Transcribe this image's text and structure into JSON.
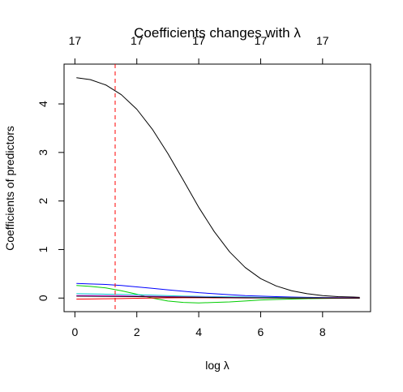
{
  "chart_data": {
    "type": "line",
    "title": "Coefficients changes with λ",
    "xlabel": "log λ",
    "ylabel": "Coefficients of predictors",
    "xlim": [
      -0.35,
      9.55
    ],
    "ylim": [
      -0.28,
      4.82
    ],
    "x_ticks": [
      {
        "value": 0,
        "label": "0"
      },
      {
        "value": 2,
        "label": "2"
      },
      {
        "value": 4,
        "label": "4"
      },
      {
        "value": 6,
        "label": "6"
      },
      {
        "value": 8,
        "label": "8"
      }
    ],
    "y_ticks": [
      {
        "value": 0,
        "label": "0"
      },
      {
        "value": 1,
        "label": "1"
      },
      {
        "value": 2,
        "label": "2"
      },
      {
        "value": 3,
        "label": "3"
      },
      {
        "value": 4,
        "label": "4"
      }
    ],
    "top_ticks": [
      {
        "value": 0,
        "label": "17"
      },
      {
        "value": 2,
        "label": "17"
      },
      {
        "value": 4,
        "label": "17"
      },
      {
        "value": 6,
        "label": "17"
      },
      {
        "value": 8,
        "label": "17"
      }
    ],
    "vline": {
      "x": 1.3,
      "color": "#ff0000",
      "style": "dashed"
    },
    "x": [
      0.05,
      0.5,
      1.0,
      1.5,
      2.0,
      2.5,
      3.0,
      3.5,
      4.0,
      4.5,
      5.0,
      5.5,
      6.0,
      6.5,
      7.0,
      7.5,
      8.0,
      8.5,
      9.0,
      9.2
    ],
    "series": [
      {
        "color": "#000000",
        "values": [
          4.54,
          4.5,
          4.39,
          4.19,
          3.89,
          3.48,
          2.98,
          2.43,
          1.87,
          1.37,
          0.95,
          0.63,
          0.4,
          0.25,
          0.15,
          0.09,
          0.05,
          0.03,
          0.02,
          0.015
        ]
      },
      {
        "color": "#0000ff",
        "values": [
          0.3,
          0.29,
          0.28,
          0.26,
          0.23,
          0.2,
          0.17,
          0.14,
          0.11,
          0.09,
          0.07,
          0.05,
          0.04,
          0.03,
          0.02,
          0.015,
          0.01,
          0.008,
          0.006,
          0.005
        ]
      },
      {
        "color": "#00cd00",
        "values": [
          0.26,
          0.24,
          0.21,
          0.15,
          0.08,
          0.0,
          -0.06,
          -0.09,
          -0.1,
          -0.09,
          -0.08,
          -0.06,
          -0.04,
          -0.03,
          -0.02,
          -0.012,
          -0.008,
          -0.005,
          -0.003,
          -0.002
        ]
      },
      {
        "color": "#00cdcd",
        "values": [
          0.09,
          0.085,
          0.08,
          0.075,
          0.07,
          0.06,
          0.05,
          0.04,
          0.035,
          0.03,
          0.025,
          0.02,
          0.015,
          0.012,
          0.01,
          0.008,
          0.006,
          0.004,
          0.003,
          0.002
        ]
      },
      {
        "color": "#ff00ff",
        "values": [
          0.05,
          0.05,
          0.048,
          0.045,
          0.04,
          0.035,
          0.03,
          0.025,
          0.02,
          0.016,
          0.012,
          0.009,
          0.007,
          0.005,
          0.004,
          0.003,
          0.002,
          0.0015,
          0.001,
          0.001
        ]
      },
      {
        "color": "#ff0000",
        "values": [
          -0.02,
          -0.018,
          -0.015,
          -0.01,
          -0.005,
          0.0,
          0.004,
          0.006,
          0.006,
          0.005,
          0.004,
          0.003,
          0.002,
          0.0015,
          0.001,
          0.0008,
          0.0006,
          0.0004,
          0.0003,
          0.0002
        ]
      },
      {
        "color": "#000000",
        "values": [
          0.04,
          0.038,
          0.036,
          0.033,
          0.03,
          0.026,
          0.022,
          0.018,
          0.015,
          0.012,
          0.009,
          0.007,
          0.005,
          0.004,
          0.003,
          0.002,
          0.0015,
          0.001,
          0.0008,
          0.0006
        ]
      }
    ]
  }
}
